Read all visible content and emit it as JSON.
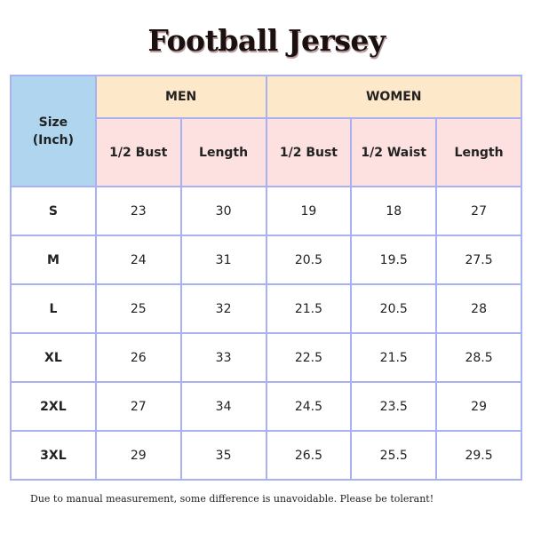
{
  "title": "Football Jersey",
  "table": {
    "corner": "Size (Inch)",
    "groups": [
      {
        "label": "MEN",
        "columns": [
          "1/2 Bust",
          "Length"
        ]
      },
      {
        "label": "WOMEN",
        "columns": [
          "1/2 Bust",
          "1/2 Waist",
          "Length"
        ]
      }
    ],
    "rows": [
      [
        "S",
        23,
        30,
        19,
        18,
        27
      ],
      [
        "M",
        24,
        31,
        20.5,
        19.5,
        27.5
      ],
      [
        "L",
        25,
        32,
        21.5,
        20.5,
        28
      ],
      [
        "XL",
        26,
        33,
        22.5,
        21.5,
        28.5
      ],
      [
        "2XL",
        27,
        34,
        24.5,
        23.5,
        29
      ],
      [
        "3XL",
        29,
        35,
        26.5,
        25.5,
        29.5
      ]
    ]
  },
  "note": "Due to manual measurement, some difference is unavoidable. Please be tolerant!"
}
